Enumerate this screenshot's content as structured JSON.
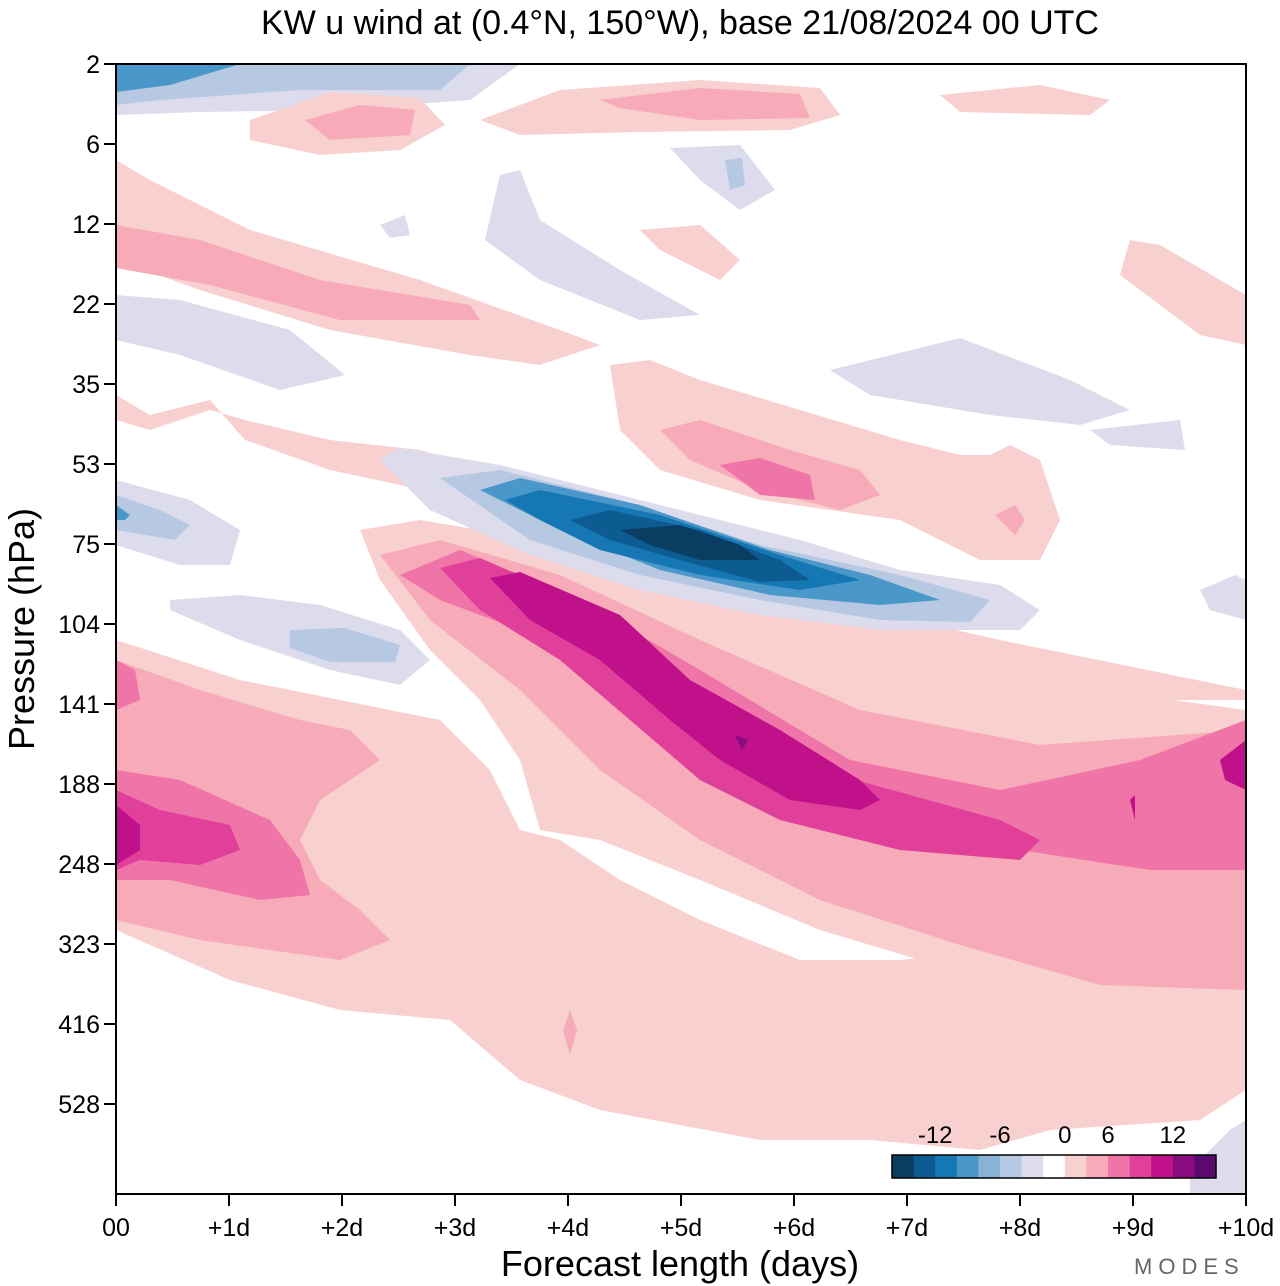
{
  "chart_data": {
    "type": "heatmap",
    "title": "KW u wind at (0.4°N, 150°W),  base 21/08/2024  00 UTC",
    "xlabel": "Forecast length (days)",
    "ylabel": "Pressure (hPa)",
    "x_ticks": [
      "00",
      "+1d",
      "+2d",
      "+3d",
      "+4d",
      "+5d",
      "+6d",
      "+7d",
      "+8d",
      "+9d",
      "+10d"
    ],
    "y_ticks": [
      "2",
      "6",
      "12",
      "22",
      "35",
      "53",
      "75",
      "104",
      "141",
      "188",
      "248",
      "323",
      "416",
      "528"
    ],
    "xlim": [
      0,
      10
    ],
    "y_scale": "log",
    "colorbar": {
      "tick_labels": [
        "-12",
        "-6",
        "0",
        "6",
        "12"
      ],
      "levels": [
        -16,
        -14,
        -12,
        -10,
        -8,
        -6,
        -4,
        -2,
        2,
        4,
        6,
        8,
        10,
        12,
        14,
        16
      ],
      "colors": [
        "#0a3d62",
        "#0d5c91",
        "#1677b5",
        "#4a97c9",
        "#88b2d6",
        "#b7c8e2",
        "#dcdced",
        "#ffffff",
        "#f9d0d0",
        "#f7aab8",
        "#ef75a8",
        "#e0409a",
        "#c0108a",
        "#8a0a80",
        "#5a0a6e"
      ]
    },
    "features": [
      {
        "name": "negative band",
        "x": [
          3.5,
          7.5
        ],
        "y_hPa": [
          53,
          90
        ],
        "min_u": -14
      },
      {
        "name": "positive band",
        "x": [
          3.0,
          9.0
        ],
        "y_hPa": [
          65,
          200
        ],
        "max_u": 16
      },
      {
        "name": "lower positive region",
        "x": [
          0,
          3.0
        ],
        "y_hPa": [
          150,
          260
        ],
        "max_u": 12
      }
    ]
  },
  "brand": "MODES"
}
